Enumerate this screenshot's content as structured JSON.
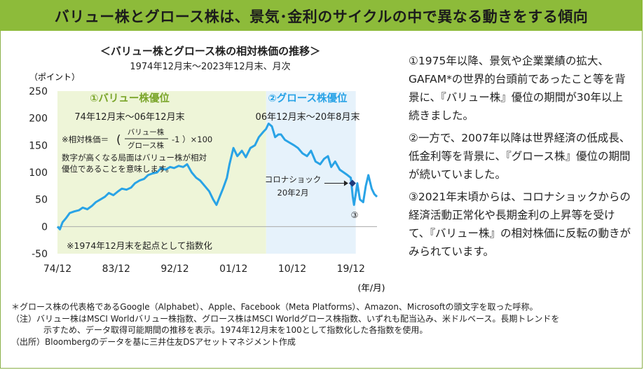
{
  "header": {
    "title": "バリュー株とグロース株は、景気･金利のサイクルの中で異なる動きをする傾向"
  },
  "chart": {
    "title": "＜バリュー株とグロース株の相対株価の推移＞",
    "subtitle": "1974年12月末～2023年12月末、月次",
    "y_unit_label": "（ポイント）",
    "x_unit_label": "(年/月)",
    "period1_title": "①バリュー株優位",
    "period1_range": "74年12月末～06年12月末",
    "period2_title": "②グロース株優位",
    "period2_range": "06年12月末～20年8月末",
    "formula_prefix": "※相対株価＝",
    "formula_numerator": "バリュー株",
    "formula_denominator": "グロース株",
    "formula_suffix": "-1 ）×100",
    "explain_line1": "数字が高くなる局面はバリュー株が相対",
    "explain_line2": "優位であることを意味します。",
    "corona_line1": "コロナショック",
    "corona_line2": "20年2月",
    "marker3": "③",
    "base_note": "※1974年12月末を起点として指数化",
    "colors": {
      "line": "#29a3e6",
      "period1_bg": "#eef5d8",
      "period2_bg": "#e6f2fb",
      "header_bg": "#8dbb3a",
      "marker": "#1f3a7a"
    }
  },
  "chart_data": {
    "type": "line",
    "title": "＜バリュー株とグロース株の相対株価の推移＞",
    "subtitle": "1974年12月末～2023年12月末、月次",
    "ylabel": "（ポイント）",
    "xlabel": "(年/月)",
    "ylim": [
      -50,
      250
    ],
    "yticks": [
      -50,
      0,
      50,
      100,
      150,
      200,
      250
    ],
    "xlim": [
      1974.92,
      2023.92
    ],
    "xticks": [
      {
        "label": "74/12",
        "x": 1974.92
      },
      {
        "label": "83/12",
        "x": 1983.92
      },
      {
        "label": "92/12",
        "x": 1992.92
      },
      {
        "label": "01/12",
        "x": 2001.92
      },
      {
        "label": "10/12",
        "x": 2010.92
      },
      {
        "label": "19/12",
        "x": 2019.92
      }
    ],
    "grid": false,
    "series": [
      {
        "x": [
          1974.92,
          1975.3,
          1975.7,
          1976.2,
          1976.8,
          1977.5,
          1978.2,
          1978.8,
          1979.5,
          1980.2,
          1980.8,
          1981.5,
          1982.2,
          1982.8,
          1983.5,
          1984.2,
          1984.8,
          1985.5,
          1986.2,
          1986.8,
          1987.5,
          1988.2,
          1988.8,
          1989.5,
          1990.2,
          1990.8,
          1991.5,
          1992.2,
          1992.8,
          1993.5,
          1994.2,
          1994.8,
          1995.5,
          1996.2,
          1996.8,
          1997.5,
          1998.2,
          1998.8,
          1999.3,
          1999.8,
          2000.3,
          2000.6,
          2000.9,
          2001.3,
          2001.9,
          2002.5,
          2003.2,
          2003.8,
          2004.5,
          2005.2,
          2005.8,
          2006.5,
          2006.9,
          2007.3,
          2007.8,
          2008.3,
          2008.8,
          2009.2,
          2009.8,
          2010.5,
          2011.2,
          2011.8,
          2012.5,
          2013.2,
          2013.8,
          2014.5,
          2015.2,
          2015.8,
          2016.4,
          2016.9,
          2017.5,
          2018.2,
          2018.8,
          2019.4,
          2019.9,
          2020.2,
          2020.4,
          2020.66,
          2020.9,
          2021.3,
          2021.8,
          2022.2,
          2022.6,
          2023.1,
          2023.5,
          2023.92
        ],
        "values": [
          0,
          -5,
          8,
          15,
          25,
          28,
          30,
          35,
          32,
          38,
          45,
          50,
          55,
          62,
          58,
          65,
          70,
          68,
          72,
          80,
          85,
          88,
          95,
          98,
          100,
          108,
          105,
          110,
          108,
          112,
          110,
          115,
          100,
          90,
          85,
          75,
          65,
          50,
          40,
          55,
          70,
          80,
          90,
          115,
          145,
          130,
          140,
          128,
          145,
          150,
          165,
          175,
          180,
          190,
          185,
          165,
          170,
          170,
          160,
          155,
          150,
          145,
          135,
          130,
          140,
          120,
          115,
          125,
          130,
          110,
          120,
          105,
          100,
          95,
          90,
          55,
          40,
          60,
          80,
          50,
          45,
          75,
          95,
          70,
          60,
          55
        ]
      }
    ],
    "annotations": [
      {
        "text": "①バリュー株優位",
        "period": [
          "74/12",
          "06/12"
        ]
      },
      {
        "text": "②グロース株優位",
        "period": [
          "06/12",
          "20/8"
        ]
      },
      {
        "text": "コロナショック 20年2月",
        "x": 2020.15,
        "y": 80
      },
      {
        "text": "③",
        "x": 2020.66,
        "y": 50
      }
    ]
  },
  "side_text": {
    "p1": "①1975年以降、景気や企業業績の拡大、GAFAM*の世界的台頭前であったこと等を背景に、『バリュー株』優位の期間が30年以上続きました。",
    "p2": "②一方で、2007年以降は世界経済の低成長、低金利等を背景に、『グロース株』優位の期間が続いていました。",
    "p3": "③2021年末頃からは、コロナショックからの経済活動正常化や長期金利の上昇等を受けて、『バリュー株』の相対株価に反転の動きがみられています。"
  },
  "notes": {
    "n1": "＊グロース株の代表格であるGoogle（Alphabet）、Apple、Facebook（Meta Platforms）、Amazon、Microsoftの頭文字を取った呼称。",
    "n2": "（注）バリュー株はMSCI Worldバリュー株指数、グロース株はMSCI Worldグロース株指数、いずれも配当込み、米ドルベース。長期トレンドを",
    "n3": "示すため、データ取得可能期間の推移を表示。1974年12月末を100として指数化した各指数を使用。",
    "n4": "（出所）Bloombergのデータを基に三井住友DSアセットマネジメント作成"
  }
}
